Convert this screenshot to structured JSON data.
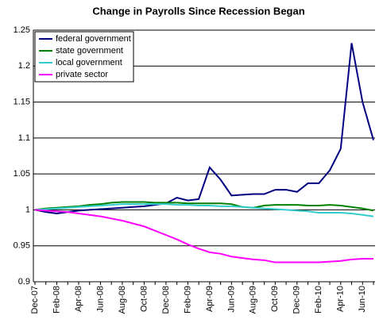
{
  "chart_data": {
    "type": "line",
    "title": "Change in Payrolls Since Recession Began",
    "categories": [
      "Dec-07",
      null,
      "Feb-08",
      null,
      "Apr-08",
      null,
      "Jun-08",
      null,
      "Aug-08",
      null,
      "Oct-08",
      null,
      "Dec-08",
      null,
      "Feb-09",
      null,
      "Apr-09",
      null,
      "Jun-09",
      null,
      "Aug-09",
      null,
      "Oct-09",
      null,
      "Dec-09",
      null,
      "Feb-10",
      null,
      "Apr-10",
      null,
      "Jun-10",
      null
    ],
    "series": [
      {
        "name": "federal government",
        "color": "#000080",
        "values": [
          1.0,
          0.997,
          0.995,
          0.997,
          0.999,
          1.0,
          1.001,
          1.002,
          1.003,
          1.004,
          1.005,
          1.007,
          1.009,
          1.017,
          1.013,
          1.015,
          1.059,
          1.042,
          1.02,
          1.021,
          1.022,
          1.022,
          1.028,
          1.028,
          1.025,
          1.037,
          1.037,
          1.055,
          1.085,
          1.232,
          1.15,
          1.097
        ]
      },
      {
        "name": "state government",
        "color": "#008000",
        "values": [
          1.0,
          1.002,
          1.003,
          1.004,
          1.005,
          1.007,
          1.008,
          1.01,
          1.011,
          1.011,
          1.011,
          1.01,
          1.01,
          1.01,
          1.009,
          1.009,
          1.009,
          1.009,
          1.008,
          1.004,
          1.003,
          1.006,
          1.007,
          1.007,
          1.007,
          1.006,
          1.006,
          1.007,
          1.006,
          1.004,
          1.002,
          0.999
        ]
      },
      {
        "name": "local government",
        "color": "#33cccc",
        "values": [
          1.0,
          1.001,
          1.002,
          1.003,
          1.004,
          1.005,
          1.006,
          1.007,
          1.008,
          1.008,
          1.008,
          1.008,
          1.008,
          1.007,
          1.007,
          1.006,
          1.006,
          1.005,
          1.005,
          1.004,
          1.003,
          1.002,
          1.001,
          1.0,
          0.999,
          0.998,
          0.996,
          0.996,
          0.996,
          0.995,
          0.993,
          0.991
        ]
      },
      {
        "name": "private sector",
        "color": "#ff00ff",
        "values": [
          1.0,
          0.999,
          0.998,
          0.997,
          0.995,
          0.993,
          0.991,
          0.988,
          0.985,
          0.981,
          0.977,
          0.971,
          0.965,
          0.959,
          0.952,
          0.946,
          0.941,
          0.939,
          0.935,
          0.933,
          0.931,
          0.93,
          0.927,
          0.927,
          0.927,
          0.927,
          0.927,
          0.928,
          0.929,
          0.931,
          0.932,
          0.932
        ]
      }
    ],
    "ylim": [
      0.9,
      1.25
    ],
    "yticks": [
      0.9,
      0.95,
      1,
      1.05,
      1.1,
      1.15,
      1.2,
      1.25
    ],
    "grid": true
  }
}
